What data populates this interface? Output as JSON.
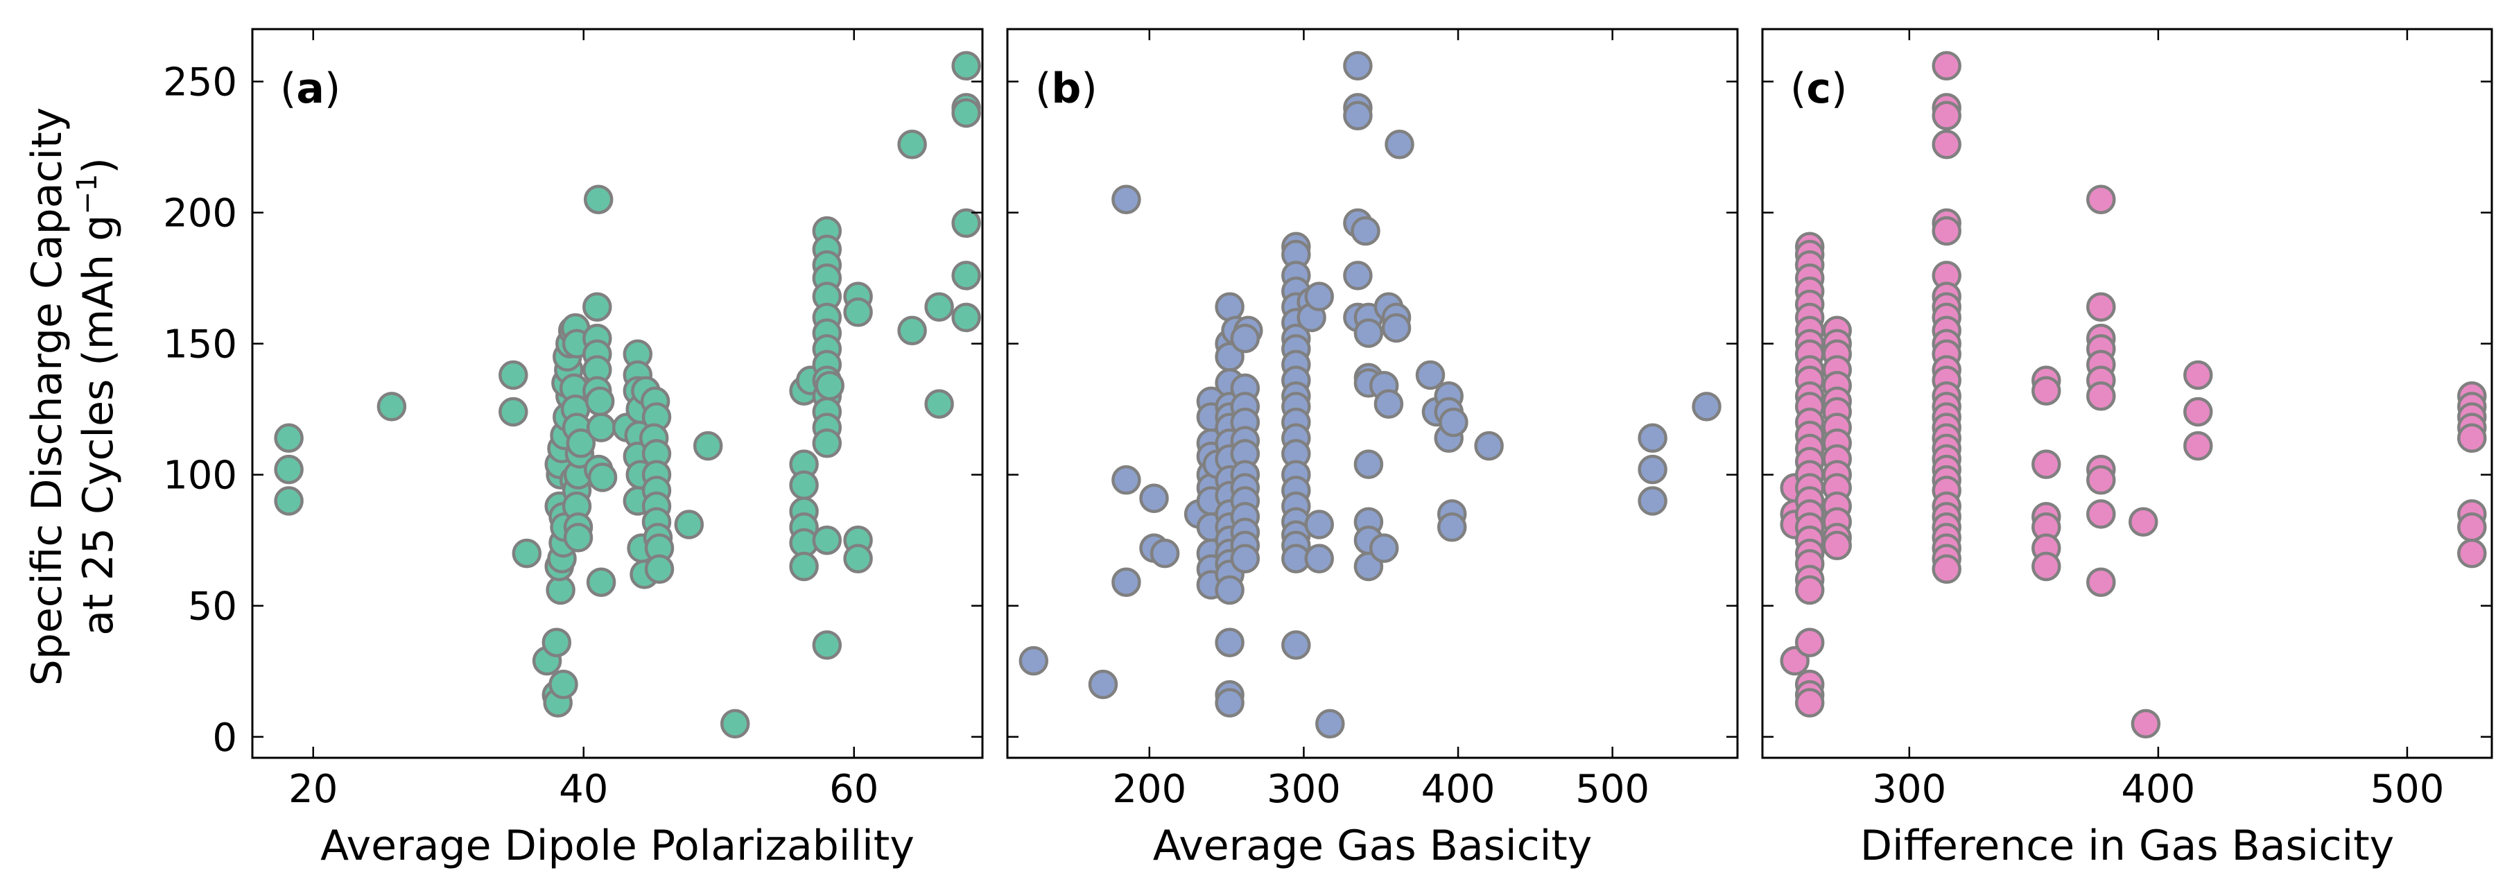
{
  "figure": {
    "ylabel_line1": "Specific Discharge Capacity",
    "ylabel_line2_prefix": "at 25 Cycles (mAh g",
    "ylabel_line2_sup": "−1",
    "ylabel_line2_suffix": ")"
  },
  "chart_data": [
    {
      "type": "scatter",
      "panel": "a",
      "panel_label": "a",
      "xlabel": "Average Dipole Polarizability",
      "ylabel": "Specific Discharge Capacity at 25 Cycles (mAh g−1)",
      "xlim": [
        15.5,
        69.5
      ],
      "ylim": [
        -8,
        270
      ],
      "xticks": [
        20,
        40,
        60
      ],
      "yticks": [
        0,
        50,
        100,
        150,
        200,
        250
      ],
      "color": "#66c2a5",
      "edge_color": "#808080",
      "points": [
        [
          18.2,
          114
        ],
        [
          18.2,
          102
        ],
        [
          18.2,
          90
        ],
        [
          25.8,
          126
        ],
        [
          34.8,
          138
        ],
        [
          34.8,
          124
        ],
        [
          35.8,
          70
        ],
        [
          37.3,
          29
        ],
        [
          38.0,
          16
        ],
        [
          38.0,
          36
        ],
        [
          38.1,
          13
        ],
        [
          38.5,
          20
        ],
        [
          38.3,
          56
        ],
        [
          38.2,
          65
        ],
        [
          38.4,
          68
        ],
        [
          38.5,
          74
        ],
        [
          38.2,
          88
        ],
        [
          38.5,
          84
        ],
        [
          38.6,
          80
        ],
        [
          38.3,
          100
        ],
        [
          38.2,
          104
        ],
        [
          38.4,
          110
        ],
        [
          38.6,
          115
        ],
        [
          38.8,
          122
        ],
        [
          39.0,
          130
        ],
        [
          38.7,
          135
        ],
        [
          38.9,
          140
        ],
        [
          38.8,
          145
        ],
        [
          39.0,
          150
        ],
        [
          39.2,
          155
        ],
        [
          39.4,
          156
        ],
        [
          39.5,
          150
        ],
        [
          39.3,
          133
        ],
        [
          39.4,
          125
        ],
        [
          39.5,
          118
        ],
        [
          39.3,
          98
        ],
        [
          39.5,
          94
        ],
        [
          39.5,
          88
        ],
        [
          39.6,
          80
        ],
        [
          39.6,
          76
        ],
        [
          39.6,
          100
        ],
        [
          39.7,
          108
        ],
        [
          39.8,
          112
        ],
        [
          41.1,
          205
        ],
        [
          41.0,
          164
        ],
        [
          41.0,
          152
        ],
        [
          41.0,
          146
        ],
        [
          41.0,
          140
        ],
        [
          41.0,
          132
        ],
        [
          41.2,
          128
        ],
        [
          41.3,
          118
        ],
        [
          41.1,
          102
        ],
        [
          41.4,
          99
        ],
        [
          41.3,
          59
        ],
        [
          43.2,
          118
        ],
        [
          44.0,
          146
        ],
        [
          44.0,
          138
        ],
        [
          44.0,
          132
        ],
        [
          44.2,
          125
        ],
        [
          44.1,
          115
        ],
        [
          44.0,
          107
        ],
        [
          44.2,
          100
        ],
        [
          44.0,
          90
        ],
        [
          44.3,
          72
        ],
        [
          44.5,
          62
        ],
        [
          44.6,
          132
        ],
        [
          45.3,
          128
        ],
        [
          45.4,
          122
        ],
        [
          45.2,
          114
        ],
        [
          45.4,
          108
        ],
        [
          45.4,
          100
        ],
        [
          45.4,
          94
        ],
        [
          45.4,
          88
        ],
        [
          45.4,
          82
        ],
        [
          45.5,
          76
        ],
        [
          45.6,
          72
        ],
        [
          45.6,
          64
        ],
        [
          47.8,
          81
        ],
        [
          49.2,
          111
        ],
        [
          51.2,
          5
        ],
        [
          56.3,
          132
        ],
        [
          56.3,
          104
        ],
        [
          56.3,
          96
        ],
        [
          56.3,
          86
        ],
        [
          56.3,
          80
        ],
        [
          56.3,
          74
        ],
        [
          56.3,
          65
        ],
        [
          56.8,
          136
        ],
        [
          58.0,
          193
        ],
        [
          58.0,
          186
        ],
        [
          58.0,
          180
        ],
        [
          58.0,
          175
        ],
        [
          58.0,
          168
        ],
        [
          58.0,
          160
        ],
        [
          58.0,
          154
        ],
        [
          58.0,
          148
        ],
        [
          58.0,
          142
        ],
        [
          58.0,
          136
        ],
        [
          58.0,
          130
        ],
        [
          58.0,
          124
        ],
        [
          58.0,
          118
        ],
        [
          58.0,
          112
        ],
        [
          58.0,
          75
        ],
        [
          58.0,
          35
        ],
        [
          58.2,
          134
        ],
        [
          60.3,
          168
        ],
        [
          60.3,
          162
        ],
        [
          60.3,
          75
        ],
        [
          60.3,
          68
        ],
        [
          64.3,
          226
        ],
        [
          64.3,
          155
        ],
        [
          66.3,
          164
        ],
        [
          66.3,
          127
        ],
        [
          68.3,
          256
        ],
        [
          68.3,
          240
        ],
        [
          68.3,
          238
        ],
        [
          68.3,
          196
        ],
        [
          68.3,
          176
        ],
        [
          68.3,
          160
        ]
      ]
    },
    {
      "type": "scatter",
      "panel": "b",
      "panel_label": "b",
      "xlabel": "Average Gas Basicity",
      "xlim": [
        108,
        581
      ],
      "ylim": [
        -8,
        270
      ],
      "xticks": [
        200,
        300,
        400,
        500
      ],
      "yticks": [
        0,
        50,
        100,
        150,
        200,
        250
      ],
      "color": "#8da0cb",
      "edge_color": "#808080",
      "points": [
        [
          125,
          29
        ],
        [
          170,
          20
        ],
        [
          185,
          205
        ],
        [
          185,
          98
        ],
        [
          185,
          59
        ],
        [
          203,
          91
        ],
        [
          203,
          72
        ],
        [
          210,
          70
        ],
        [
          232,
          85
        ],
        [
          240,
          128
        ],
        [
          240,
          122
        ],
        [
          240,
          112
        ],
        [
          240,
          107
        ],
        [
          240,
          100
        ],
        [
          240,
          95
        ],
        [
          240,
          90
        ],
        [
          240,
          80
        ],
        [
          240,
          70
        ],
        [
          240,
          64
        ],
        [
          240,
          58
        ],
        [
          244,
          104
        ],
        [
          252,
          164
        ],
        [
          252,
          150
        ],
        [
          252,
          145
        ],
        [
          252,
          135
        ],
        [
          252,
          126
        ],
        [
          252,
          122
        ],
        [
          252,
          118
        ],
        [
          252,
          112
        ],
        [
          252,
          106
        ],
        [
          252,
          98
        ],
        [
          252,
          92
        ],
        [
          252,
          85
        ],
        [
          252,
          80
        ],
        [
          252,
          75
        ],
        [
          252,
          70
        ],
        [
          252,
          66
        ],
        [
          252,
          62
        ],
        [
          252,
          56
        ],
        [
          252,
          36
        ],
        [
          252,
          16
        ],
        [
          252,
          13
        ],
        [
          256,
          155
        ],
        [
          264,
          155
        ],
        [
          262,
          152
        ],
        [
          262,
          133
        ],
        [
          262,
          126
        ],
        [
          262,
          120
        ],
        [
          262,
          113
        ],
        [
          262,
          108
        ],
        [
          262,
          100
        ],
        [
          262,
          95
        ],
        [
          262,
          90
        ],
        [
          262,
          84
        ],
        [
          262,
          78
        ],
        [
          262,
          73
        ],
        [
          262,
          68
        ],
        [
          295,
          187
        ],
        [
          295,
          184
        ],
        [
          295,
          176
        ],
        [
          295,
          170
        ],
        [
          295,
          164
        ],
        [
          295,
          158
        ],
        [
          295,
          152
        ],
        [
          295,
          148
        ],
        [
          295,
          142
        ],
        [
          295,
          136
        ],
        [
          295,
          130
        ],
        [
          295,
          126
        ],
        [
          295,
          120
        ],
        [
          295,
          114
        ],
        [
          295,
          108
        ],
        [
          295,
          100
        ],
        [
          295,
          94
        ],
        [
          295,
          88
        ],
        [
          295,
          82
        ],
        [
          295,
          77
        ],
        [
          295,
          73
        ],
        [
          295,
          68
        ],
        [
          295,
          35
        ],
        [
          305,
          166
        ],
        [
          305,
          160
        ],
        [
          310,
          168
        ],
        [
          310,
          81
        ],
        [
          310,
          68
        ],
        [
          317,
          5
        ],
        [
          335,
          256
        ],
        [
          335,
          240
        ],
        [
          335,
          237
        ],
        [
          335,
          196
        ],
        [
          335,
          176
        ],
        [
          335,
          160
        ],
        [
          340,
          193
        ],
        [
          342,
          160
        ],
        [
          342,
          154
        ],
        [
          342,
          137
        ],
        [
          342,
          135
        ],
        [
          342,
          104
        ],
        [
          342,
          82
        ],
        [
          342,
          75
        ],
        [
          342,
          65
        ],
        [
          352,
          134
        ],
        [
          352,
          72
        ],
        [
          355,
          164
        ],
        [
          355,
          127
        ],
        [
          360,
          160
        ],
        [
          360,
          156
        ],
        [
          362,
          226
        ],
        [
          382,
          138
        ],
        [
          386,
          124
        ],
        [
          394,
          130
        ],
        [
          394,
          124
        ],
        [
          394,
          114
        ],
        [
          397,
          120
        ],
        [
          396,
          85
        ],
        [
          396,
          80
        ],
        [
          420,
          111
        ],
        [
          526,
          114
        ],
        [
          526,
          102
        ],
        [
          526,
          90
        ],
        [
          561,
          126
        ]
      ]
    },
    {
      "type": "scatter",
      "panel": "c",
      "panel_label": "c",
      "xlabel": "Difference in Gas Basicity",
      "xlim": [
        241,
        534
      ],
      "ylim": [
        -8,
        270
      ],
      "xticks": [
        300,
        400,
        500
      ],
      "yticks": [
        0,
        50,
        100,
        150,
        200,
        250
      ],
      "color": "#e78ac3",
      "edge_color": "#808080",
      "points": [
        [
          254,
          29
        ],
        [
          254,
          95
        ],
        [
          254,
          85
        ],
        [
          254,
          81
        ],
        [
          260,
          187
        ],
        [
          260,
          184
        ],
        [
          260,
          180
        ],
        [
          260,
          175
        ],
        [
          260,
          170
        ],
        [
          260,
          165
        ],
        [
          260,
          160
        ],
        [
          260,
          155
        ],
        [
          260,
          150
        ],
        [
          260,
          146
        ],
        [
          260,
          140
        ],
        [
          260,
          136
        ],
        [
          260,
          130
        ],
        [
          260,
          126
        ],
        [
          260,
          120
        ],
        [
          260,
          115
        ],
        [
          260,
          110
        ],
        [
          260,
          105
        ],
        [
          260,
          100
        ],
        [
          260,
          95
        ],
        [
          260,
          90
        ],
        [
          260,
          85
        ],
        [
          260,
          80
        ],
        [
          260,
          75
        ],
        [
          260,
          70
        ],
        [
          260,
          66
        ],
        [
          260,
          60
        ],
        [
          260,
          56
        ],
        [
          260,
          36
        ],
        [
          260,
          20
        ],
        [
          260,
          16
        ],
        [
          260,
          13
        ],
        [
          271,
          155
        ],
        [
          271,
          150
        ],
        [
          271,
          146
        ],
        [
          271,
          140
        ],
        [
          271,
          134
        ],
        [
          271,
          128
        ],
        [
          271,
          124
        ],
        [
          271,
          118
        ],
        [
          271,
          112
        ],
        [
          271,
          106
        ],
        [
          271,
          100
        ],
        [
          271,
          95
        ],
        [
          271,
          88
        ],
        [
          271,
          82
        ],
        [
          271,
          76
        ],
        [
          271,
          73
        ],
        [
          315,
          256
        ],
        [
          315,
          240
        ],
        [
          315,
          237
        ],
        [
          315,
          226
        ],
        [
          315,
          196
        ],
        [
          315,
          193
        ],
        [
          315,
          176
        ],
        [
          315,
          168
        ],
        [
          315,
          164
        ],
        [
          315,
          160
        ],
        [
          315,
          155
        ],
        [
          315,
          150
        ],
        [
          315,
          146
        ],
        [
          315,
          140
        ],
        [
          315,
          136
        ],
        [
          315,
          130
        ],
        [
          315,
          126
        ],
        [
          315,
          122
        ],
        [
          315,
          118
        ],
        [
          315,
          114
        ],
        [
          315,
          110
        ],
        [
          315,
          106
        ],
        [
          315,
          102
        ],
        [
          315,
          98
        ],
        [
          315,
          94
        ],
        [
          315,
          88
        ],
        [
          315,
          84
        ],
        [
          315,
          80
        ],
        [
          315,
          76
        ],
        [
          315,
          72
        ],
        [
          315,
          68
        ],
        [
          315,
          64
        ],
        [
          355,
          136
        ],
        [
          355,
          132
        ],
        [
          355,
          104
        ],
        [
          355,
          84
        ],
        [
          355,
          80
        ],
        [
          355,
          72
        ],
        [
          355,
          65
        ],
        [
          377,
          205
        ],
        [
          377,
          164
        ],
        [
          377,
          152
        ],
        [
          377,
          148
        ],
        [
          377,
          142
        ],
        [
          377,
          136
        ],
        [
          377,
          130
        ],
        [
          377,
          102
        ],
        [
          377,
          98
        ],
        [
          377,
          85
        ],
        [
          377,
          59
        ],
        [
          394,
          82
        ],
        [
          395,
          5
        ],
        [
          416,
          138
        ],
        [
          416,
          124
        ],
        [
          416,
          111
        ],
        [
          526,
          130
        ],
        [
          526,
          126
        ],
        [
          526,
          122
        ],
        [
          526,
          118
        ],
        [
          526,
          114
        ],
        [
          526,
          85
        ],
        [
          526,
          80
        ],
        [
          526,
          70
        ]
      ]
    }
  ]
}
